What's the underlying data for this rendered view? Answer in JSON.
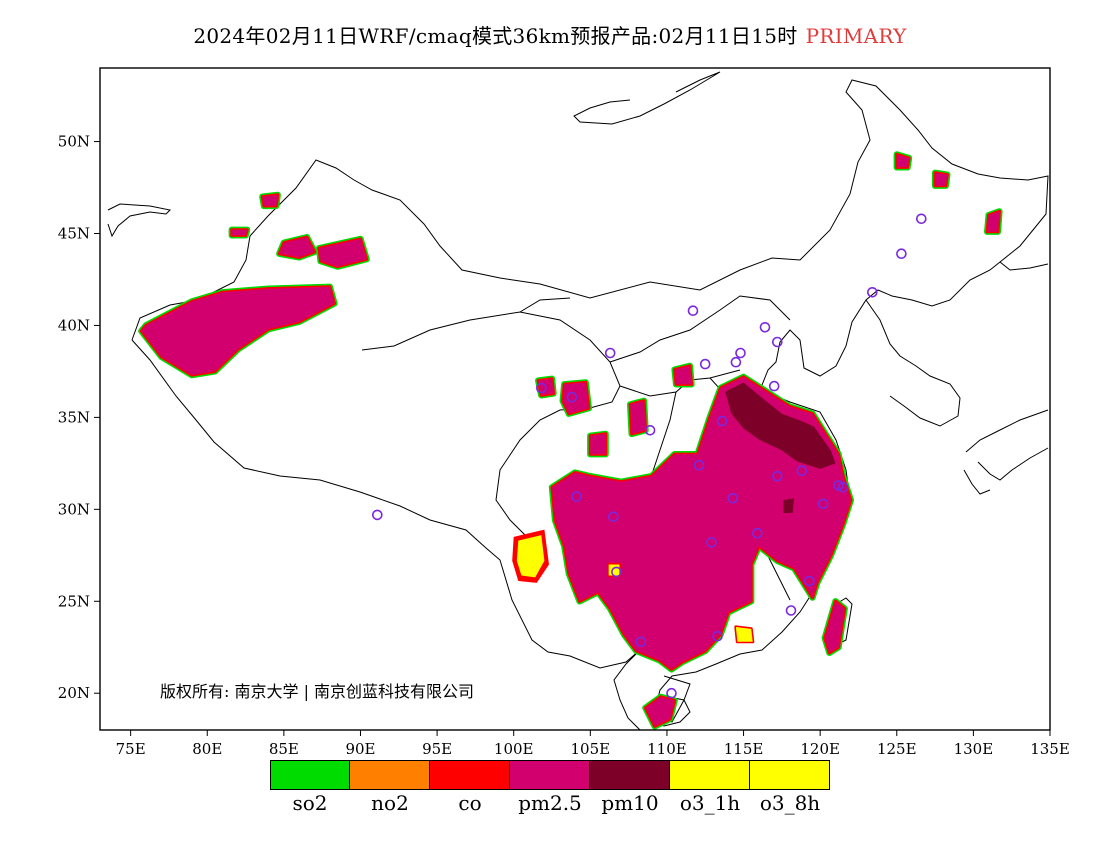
{
  "title": {
    "main": "2024年02月11日WRF/cmaq模式36km预报产品:02月11日15时",
    "tag": "PRIMARY",
    "tag_color": "#e03c3c"
  },
  "axes": {
    "lon_labels": [
      "75E",
      "80E",
      "85E",
      "90E",
      "95E",
      "100E",
      "105E",
      "110E",
      "115E",
      "120E",
      "125E",
      "130E",
      "135E"
    ],
    "lat_labels": [
      "50N",
      "45N",
      "40N",
      "35N",
      "30N",
      "25N",
      "20N"
    ],
    "lon_range": [
      73,
      135
    ],
    "lat_range": [
      18,
      54
    ]
  },
  "copyright": "版权所有: 南京大学 | 南京创蓝科技有限公司",
  "legend": [
    {
      "label": "so2",
      "color": "#00dc00"
    },
    {
      "label": "no2",
      "color": "#ff7f00"
    },
    {
      "label": "co",
      "color": "#ff0000"
    },
    {
      "label": "pm2.5",
      "color": "#d2006e"
    },
    {
      "label": "pm10",
      "color": "#7d0028"
    },
    {
      "label": "o3_1h",
      "color": "#ffff00"
    },
    {
      "label": "o3_8h",
      "color": "#ffff00"
    }
  ],
  "map_data": {
    "pm25_regions": [
      {
        "name": "xinjiang-tarim",
        "points": [
          [
            76,
            40
          ],
          [
            79,
            41.3
          ],
          [
            81,
            41.8
          ],
          [
            84,
            42
          ],
          [
            88,
            42.1
          ],
          [
            88.3,
            41.2
          ],
          [
            86,
            40.2
          ],
          [
            84,
            39.8
          ],
          [
            82,
            38.7
          ],
          [
            80.5,
            37.5
          ],
          [
            79,
            37.3
          ],
          [
            77,
            38.3
          ],
          [
            75.7,
            39.7
          ]
        ]
      },
      {
        "name": "xinjiang-north-a",
        "points": [
          [
            85,
            44.5
          ],
          [
            86.5,
            44.8
          ],
          [
            87,
            44
          ],
          [
            86,
            43.7
          ],
          [
            84.7,
            43.9
          ]
        ]
      },
      {
        "name": "xinjiang-north-b",
        "points": [
          [
            87.3,
            44.2
          ],
          [
            90,
            44.7
          ],
          [
            90.4,
            43.6
          ],
          [
            88.5,
            43.2
          ],
          [
            87.4,
            43.5
          ]
        ]
      },
      {
        "name": "xinjiang-north-c",
        "points": [
          [
            83.6,
            47
          ],
          [
            84.6,
            47.1
          ],
          [
            84.5,
            46.5
          ],
          [
            83.7,
            46.5
          ]
        ]
      },
      {
        "name": "xinjiang-north-d",
        "points": [
          [
            81.6,
            45.2
          ],
          [
            82.6,
            45.2
          ],
          [
            82.5,
            44.9
          ],
          [
            81.6,
            44.9
          ]
        ]
      },
      {
        "name": "central-china",
        "points": [
          [
            102.5,
            31.2
          ],
          [
            104,
            32
          ],
          [
            105,
            31.8
          ],
          [
            107,
            31.5
          ],
          [
            109,
            31.8
          ],
          [
            110.5,
            33
          ],
          [
            112,
            33
          ],
          [
            112.8,
            35
          ],
          [
            113.5,
            36.6
          ],
          [
            115,
            37.2
          ],
          [
            116.5,
            36.4
          ],
          [
            118,
            35.6
          ],
          [
            119.5,
            35.2
          ],
          [
            121.2,
            33
          ],
          [
            121.5,
            31.8
          ],
          [
            122,
            30.5
          ],
          [
            121.5,
            29.2
          ],
          [
            120.7,
            27.5
          ],
          [
            119.8,
            26
          ],
          [
            119.5,
            25.2
          ],
          [
            118.3,
            26.8
          ],
          [
            117.2,
            27.2
          ],
          [
            116,
            28
          ],
          [
            115.5,
            27
          ],
          [
            115.5,
            25
          ],
          [
            114,
            24.4
          ],
          [
            113.5,
            23.2
          ],
          [
            112.5,
            22.3
          ],
          [
            111,
            21.7
          ],
          [
            110.3,
            21.3
          ],
          [
            109.5,
            21.8
          ],
          [
            108,
            22.3
          ],
          [
            107.2,
            23.2
          ],
          [
            106.3,
            24.6
          ],
          [
            105.5,
            25.5
          ],
          [
            104.3,
            25
          ],
          [
            103.6,
            26.5
          ],
          [
            103.3,
            28
          ],
          [
            102.7,
            29.4
          ]
        ]
      },
      {
        "name": "hainan",
        "points": [
          [
            108.6,
            19.2
          ],
          [
            109.6,
            19.8
          ],
          [
            110.5,
            19.6
          ],
          [
            110.2,
            18.6
          ],
          [
            109.2,
            18.2
          ]
        ]
      },
      {
        "name": "taiwan",
        "points": [
          [
            120.3,
            23
          ],
          [
            121,
            25
          ],
          [
            121.6,
            24.6
          ],
          [
            121.2,
            22.5
          ],
          [
            120.6,
            22.2
          ]
        ]
      },
      {
        "name": "ne-a",
        "points": [
          [
            125,
            49.3
          ],
          [
            125.8,
            49.1
          ],
          [
            125.7,
            48.6
          ],
          [
            125,
            48.6
          ]
        ]
      },
      {
        "name": "ne-b",
        "points": [
          [
            127.5,
            48.3
          ],
          [
            128.3,
            48.2
          ],
          [
            128.2,
            47.6
          ],
          [
            127.5,
            47.6
          ]
        ]
      },
      {
        "name": "ne-c",
        "points": [
          [
            131,
            46
          ],
          [
            131.7,
            46.2
          ],
          [
            131.6,
            45.1
          ],
          [
            130.9,
            45.1
          ]
        ]
      },
      {
        "name": "sw-gansu-a",
        "points": [
          [
            101.6,
            37
          ],
          [
            102.5,
            37.1
          ],
          [
            102.6,
            36.3
          ],
          [
            101.8,
            36.2
          ]
        ]
      },
      {
        "name": "sw-gansu-b",
        "points": [
          [
            103.3,
            36.8
          ],
          [
            104.7,
            36.9
          ],
          [
            104.9,
            35.5
          ],
          [
            103.6,
            35.2
          ],
          [
            103.2,
            35.9
          ]
        ]
      },
      {
        "name": "sichuan-a",
        "points": [
          [
            105,
            34
          ],
          [
            106,
            34.1
          ],
          [
            106,
            33
          ],
          [
            105,
            33
          ]
        ]
      },
      {
        "name": "shanxi-a",
        "points": [
          [
            107.6,
            35.7
          ],
          [
            108.5,
            35.9
          ],
          [
            108.6,
            34.3
          ],
          [
            107.7,
            34.1
          ]
        ]
      },
      {
        "name": "shanxi-b",
        "points": [
          [
            110.5,
            37.6
          ],
          [
            111.5,
            37.8
          ],
          [
            111.6,
            36.8
          ],
          [
            110.6,
            36.8
          ]
        ]
      }
    ],
    "pm10_regions": [
      {
        "name": "north-china-plain",
        "points": [
          [
            113.8,
            36.4
          ],
          [
            115,
            36.9
          ],
          [
            116.3,
            36
          ],
          [
            117.5,
            35.2
          ],
          [
            118.8,
            34.8
          ],
          [
            119.6,
            34.5
          ],
          [
            120.7,
            33.2
          ],
          [
            121,
            32.5
          ],
          [
            120,
            32.2
          ],
          [
            118.5,
            32.6
          ],
          [
            117.5,
            33.2
          ],
          [
            116,
            33.8
          ],
          [
            115,
            34.4
          ],
          [
            114.2,
            35.2
          ]
        ]
      },
      {
        "name": "jiangxi-spot",
        "points": [
          [
            117.6,
            30.5
          ],
          [
            118.3,
            30.6
          ],
          [
            118.2,
            29.8
          ],
          [
            117.6,
            29.8
          ]
        ]
      }
    ],
    "o3_regions": [
      {
        "name": "yunnan-o3",
        "points": [
          [
            100.3,
            28.3
          ],
          [
            101.8,
            28.6
          ],
          [
            102,
            27.2
          ],
          [
            101.4,
            26.3
          ],
          [
            100.5,
            26.4
          ],
          [
            100.2,
            27.2
          ]
        ]
      },
      {
        "name": "guangdong-o3",
        "points": [
          [
            114.5,
            23.6
          ],
          [
            115.5,
            23.5
          ],
          [
            115.6,
            22.8
          ],
          [
            114.6,
            22.8
          ]
        ]
      },
      {
        "name": "guizhou-o3",
        "points": [
          [
            106.2,
            27
          ],
          [
            106.9,
            27
          ],
          [
            106.9,
            26.4
          ],
          [
            106.2,
            26.4
          ]
        ]
      }
    ],
    "co_regions": [
      {
        "name": "yunnan-co",
        "points": [
          [
            100,
            28.5
          ],
          [
            102,
            28.9
          ],
          [
            102.3,
            27
          ],
          [
            101.5,
            26
          ],
          [
            100.3,
            26.1
          ],
          [
            99.9,
            27.2
          ]
        ]
      }
    ],
    "sites": [
      [
        91.1,
        29.7
      ],
      [
        101.8,
        36.6
      ],
      [
        103.8,
        36.1
      ],
      [
        106.3,
        38.5
      ],
      [
        108.9,
        34.3
      ],
      [
        111.7,
        40.8
      ],
      [
        112.5,
        37.9
      ],
      [
        114.5,
        38
      ],
      [
        116.4,
        39.9
      ],
      [
        117.2,
        39.1
      ],
      [
        123.4,
        41.8
      ],
      [
        125.3,
        43.9
      ],
      [
        126.6,
        45.8
      ],
      [
        117,
        36.7
      ],
      [
        113.6,
        34.8
      ],
      [
        114.3,
        30.6
      ],
      [
        112.9,
        28.2
      ],
      [
        113.3,
        23.1
      ],
      [
        115.9,
        28.7
      ],
      [
        117.2,
        31.8
      ],
      [
        118.8,
        32.1
      ],
      [
        120.2,
        30.3
      ],
      [
        121.5,
        31.2
      ],
      [
        119.3,
        26.1
      ],
      [
        106.7,
        26.6
      ],
      [
        106.5,
        29.6
      ],
      [
        104.1,
        30.7
      ],
      [
        108.3,
        22.8
      ],
      [
        110.3,
        20
      ],
      [
        112.1,
        32.4
      ],
      [
        114.8,
        38.5
      ],
      [
        121.2,
        31.3
      ],
      [
        118.1,
        24.5
      ]
    ]
  }
}
